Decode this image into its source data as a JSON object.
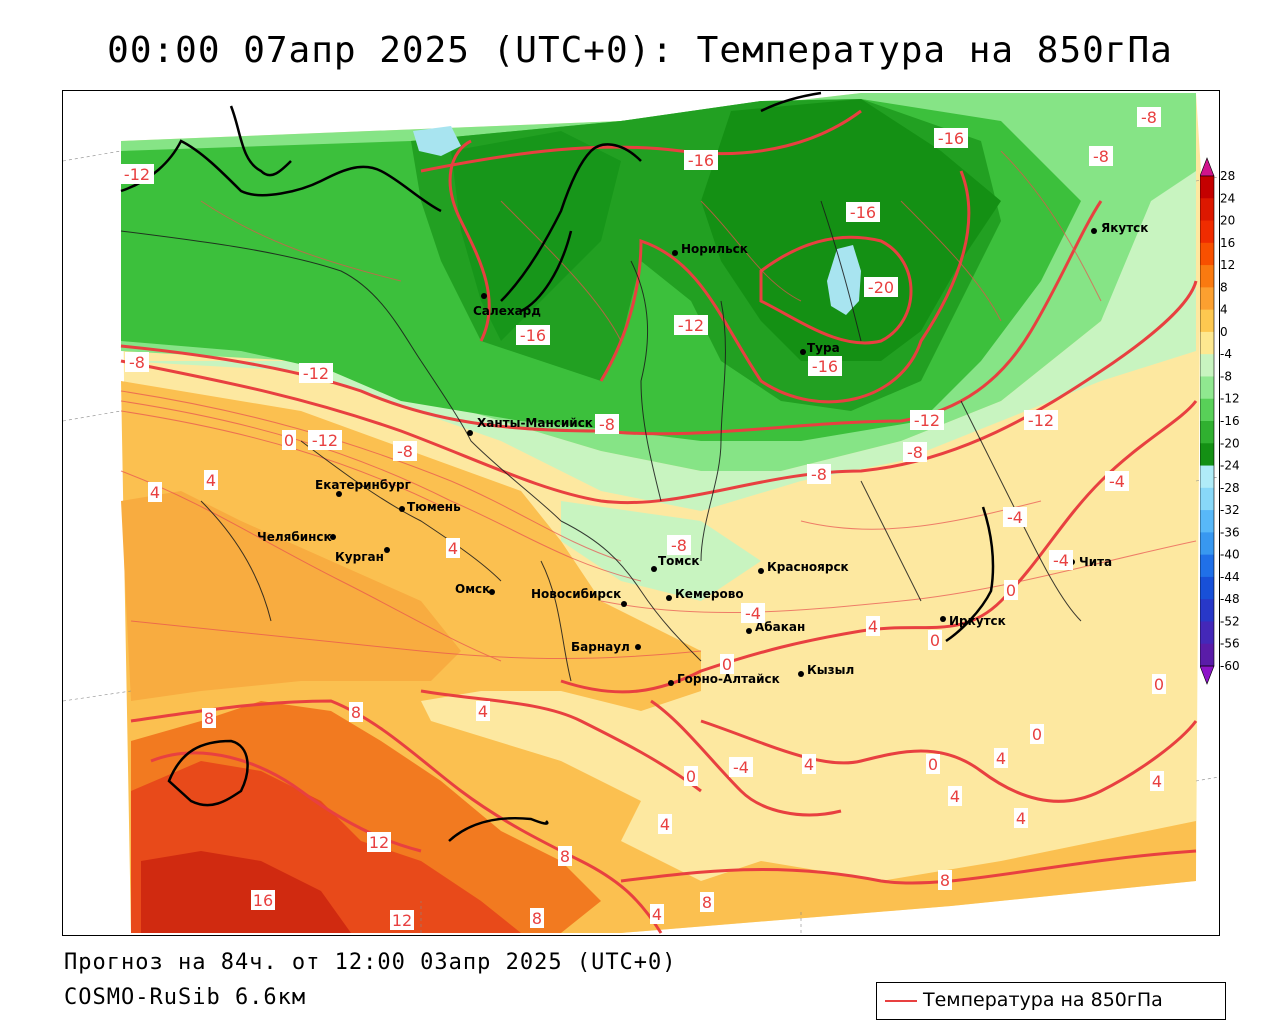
{
  "title": "00:00 07апр 2025 (UTC+0): Температура на 850гПа",
  "forecast_text": "Прогноз на 84ч. от 12:00 03апр 2025 (UTC+0)",
  "model_text": "COSMO-RuSib 6.6км",
  "legend_label": "Температура на 850гПа",
  "colors": {
    "contour": "#e84040",
    "bands": {
      "green_dark": "#149014",
      "green": "#2eaa2e",
      "green_mid": "#58d058",
      "green_light": "#8ee68e",
      "green_pale": "#c4f4c4",
      "yellow_pale": "#fdf0a8",
      "yellow": "#fde080",
      "orange_light": "#fbc050",
      "orange": "#f7a038",
      "orange_dark": "#f07020",
      "red": "#e84a1a",
      "red_dark": "#d02a10",
      "lake": "#a8e4f0"
    }
  },
  "colorbar": {
    "ticks": [
      "28",
      "24",
      "20",
      "16",
      "12",
      "8",
      "4",
      "0",
      "-4",
      "-8",
      "-12",
      "-16",
      "-20",
      "-24",
      "-28",
      "-32",
      "-36",
      "-40",
      "-44",
      "-48",
      "-52",
      "-56",
      "-60"
    ],
    "colors": [
      "#c40000",
      "#dc1800",
      "#f02c00",
      "#f85000",
      "#fa7a10",
      "#fca030",
      "#fdc850",
      "#fde890",
      "#c8f4c0",
      "#90e890",
      "#58d058",
      "#30b030",
      "#149014",
      "#b0ecf8",
      "#88d8f8",
      "#58b8f8",
      "#3898f0",
      "#2070e8",
      "#1850d8",
      "#2838c8",
      "#4428b8",
      "#5a1ca8"
    ]
  },
  "cities": [
    {
      "name": "Салехард"
    },
    {
      "name": "Норильск"
    },
    {
      "name": "Якутск"
    },
    {
      "name": "Тура"
    },
    {
      "name": "Ханты-Мансийск"
    },
    {
      "name": "Екатеринбург"
    },
    {
      "name": "Тюмень"
    },
    {
      "name": "Челябинск"
    },
    {
      "name": "Курган"
    },
    {
      "name": "Омск"
    },
    {
      "name": "Новосибирск"
    },
    {
      "name": "Томск"
    },
    {
      "name": "Кемерово"
    },
    {
      "name": "Красноярск"
    },
    {
      "name": "Абакан"
    },
    {
      "name": "Барнаул"
    },
    {
      "name": "Горно-Алтайск"
    },
    {
      "name": "Кызыл"
    },
    {
      "name": "Иркутск"
    },
    {
      "name": "Чита"
    }
  ],
  "isotherm_labels": [
    "-12",
    "-16",
    "-16",
    "-16",
    "-20",
    "-16",
    "-12",
    "-8",
    "-8",
    "-12",
    "-16",
    "-12",
    "-8",
    "-12",
    "-8",
    "-4",
    "0",
    "-8",
    "-12",
    "-8",
    "-8",
    "-8",
    "-4",
    "-4",
    "4",
    "4",
    "4",
    "-4",
    "0",
    "4",
    "0",
    "4",
    "8",
    "8",
    "4",
    "0",
    "0",
    "-4",
    "4",
    "0",
    "0",
    "4",
    "4",
    "4",
    "4",
    "8",
    "12",
    "16",
    "12",
    "8",
    "4",
    "8",
    "8",
    "0"
  ]
}
